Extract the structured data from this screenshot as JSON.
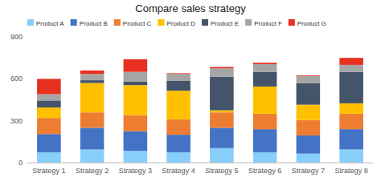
{
  "chart_data": {
    "type": "bar",
    "title": "Compare sales strategy",
    "categories": [
      "Strategy 1",
      "Strategy 2",
      "Strategy 3",
      "Strategy 4",
      "Strategy 5",
      "Strategy 6",
      "Strategy 7",
      "Strategy 8"
    ],
    "series": [
      {
        "name": "Product A",
        "color": "#87CEFA",
        "values": [
          75,
          95,
          85,
          75,
          105,
          75,
          65,
          95
        ]
      },
      {
        "name": "Product B",
        "color": "#4472C4",
        "values": [
          130,
          155,
          140,
          125,
          145,
          165,
          130,
          145
        ]
      },
      {
        "name": "Product C",
        "color": "#ED7D31",
        "values": [
          115,
          110,
          115,
          110,
          110,
          110,
          110,
          110
        ]
      },
      {
        "name": "Product D",
        "color": "#FFC000",
        "values": [
          75,
          210,
          215,
          205,
          15,
          195,
          110,
          75
        ]
      },
      {
        "name": "Product E",
        "color": "#44546A",
        "values": [
          50,
          20,
          25,
          70,
          240,
          105,
          155,
          225
        ]
      },
      {
        "name": "Product F",
        "color": "#A5A5A5",
        "values": [
          45,
          45,
          70,
          50,
          60,
          55,
          50,
          50
        ]
      },
      {
        "name": "Product G",
        "color": "#E83020",
        "values": [
          110,
          25,
          90,
          5,
          10,
          10,
          5,
          50
        ]
      }
    ],
    "ylim": [
      0,
      900
    ],
    "yticks": [
      0,
      300,
      600,
      900
    ],
    "stacked": true,
    "grid": false,
    "legend": "top-left"
  }
}
